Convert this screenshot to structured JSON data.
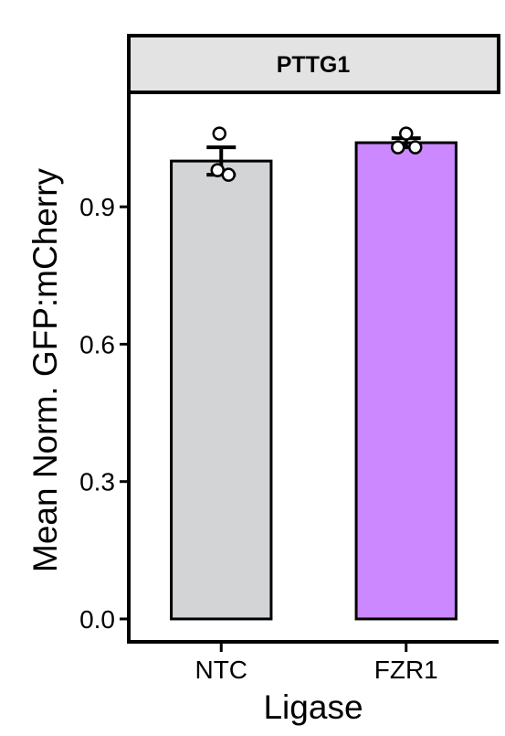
{
  "chart_data": {
    "type": "bar",
    "facet_title": "PTTG1",
    "xlabel": "Ligase",
    "ylabel": "Mean Norm. GFP:mCherry",
    "categories": [
      "NTC",
      "FZR1"
    ],
    "values": [
      1.0,
      1.04
    ],
    "error": [
      0.03,
      0.01
    ],
    "points": [
      [
        1.06,
        0.98,
        0.97
      ],
      [
        1.06,
        1.03,
        1.03
      ]
    ],
    "ylim": [
      -0.05,
      1.15
    ],
    "yticks": [
      0.0,
      0.3,
      0.6,
      0.9
    ],
    "ytick_labels": [
      "0.0",
      "0.3",
      "0.6",
      "0.9"
    ],
    "bar_colors": [
      "#d3d4d6",
      "#cc88ff"
    ],
    "grid": false,
    "legend": "none"
  }
}
